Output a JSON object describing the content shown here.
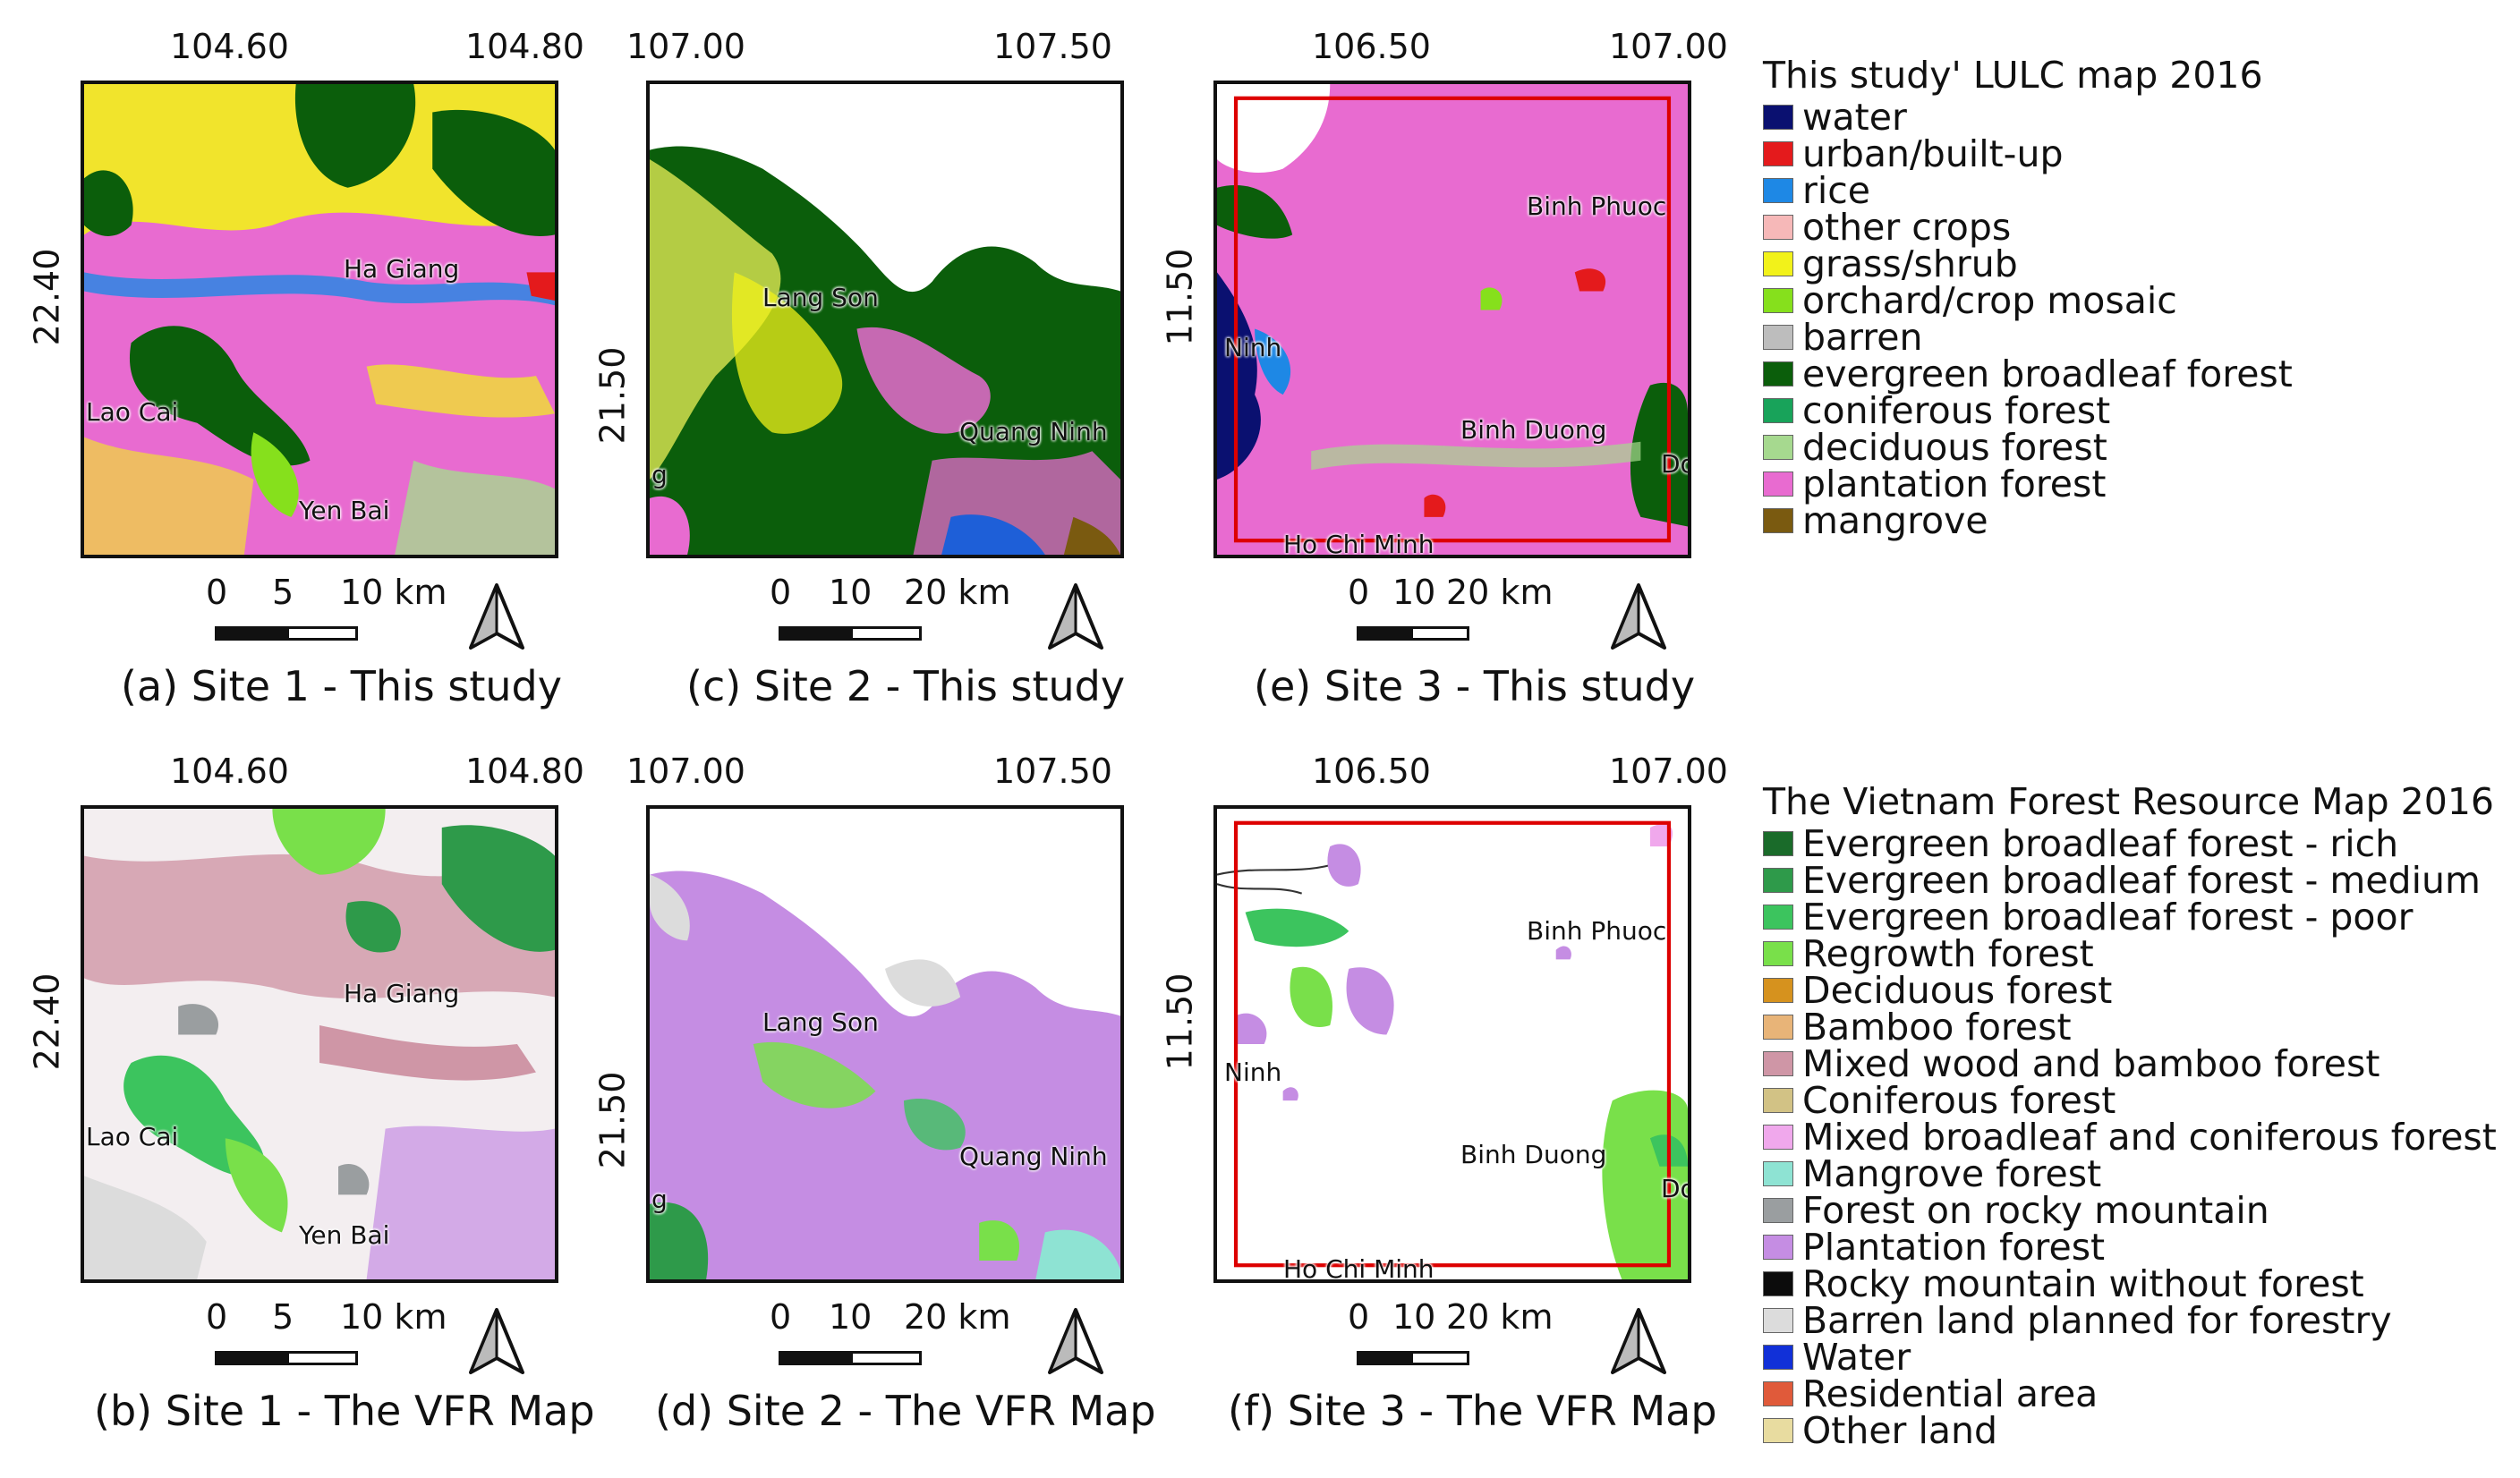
{
  "panels": [
    {
      "id": "a",
      "caption": "(a) Site 1 - This study",
      "top_ticks": [
        "104.60",
        "104.80"
      ],
      "left_tick": "22.40",
      "scale_labels": [
        "0",
        "5",
        "10 km"
      ],
      "places": [
        "Ha Giang",
        "Lao Cai",
        "Yen Bai"
      ]
    },
    {
      "id": "c",
      "caption": "(c) Site 2 - This study",
      "top_ticks": [
        "107.00",
        "107.50"
      ],
      "left_tick": "21.50",
      "scale_labels": [
        "0",
        "10",
        "20 km"
      ],
      "places": [
        "Lang Son",
        "Quang Ninh",
        "g"
      ]
    },
    {
      "id": "e",
      "caption": "(e) Site 3 - This study",
      "top_ticks": [
        "106.50",
        "107.00"
      ],
      "left_tick": "11.50",
      "scale_labels": [
        "0",
        "10",
        "20 km"
      ],
      "places": [
        "Binh Phuoc",
        "Ninh",
        "Binh Duong",
        "Ho Chi Minh",
        "Do"
      ]
    },
    {
      "id": "b",
      "caption": "(b) Site 1 - The VFR Map",
      "top_ticks": [
        "104.60",
        "104.80"
      ],
      "left_tick": "22.40",
      "scale_labels": [
        "0",
        "5",
        "10 km"
      ],
      "places": [
        "Ha Giang",
        "Lao Cai",
        "Yen Bai"
      ]
    },
    {
      "id": "d",
      "caption": "(d) Site 2 - The VFR Map",
      "top_ticks": [
        "107.00",
        "107.50"
      ],
      "left_tick": "21.50",
      "scale_labels": [
        "0",
        "10",
        "20 km"
      ],
      "places": [
        "Lang Son",
        "Quang Ninh",
        "g"
      ]
    },
    {
      "id": "f",
      "caption": "(f) Site 3 - The VFR Map",
      "top_ticks": [
        "106.50",
        "107.00"
      ],
      "left_tick": "11.50",
      "scale_labels": [
        "0",
        "10",
        "20 km"
      ],
      "places": [
        "Binh Phuoc",
        "Ninh",
        "Binh Duong",
        "Ho Chi Minh",
        "Do"
      ]
    }
  ],
  "legend_study": {
    "title": "This study' LULC map 2016",
    "items": [
      {
        "label": "water",
        "color": "#0a1070"
      },
      {
        "label": "urban/built-up",
        "color": "#e41a1c"
      },
      {
        "label": "rice",
        "color": "#1e88e5"
      },
      {
        "label": "other crops",
        "color": "#f6b8b8"
      },
      {
        "label": "grass/shrub",
        "color": "#f2f21a"
      },
      {
        "label": "orchard/crop mosaic",
        "color": "#86e01c"
      },
      {
        "label": "barren",
        "color": "#bdbdbd"
      },
      {
        "label": "evergreen broadleaf forest",
        "color": "#0b5e0b"
      },
      {
        "label": "coniferous forest",
        "color": "#18a35a"
      },
      {
        "label": "deciduous forest",
        "color": "#a6d98f"
      },
      {
        "label": "plantation forest",
        "color": "#e86bd0"
      },
      {
        "label": "mangrove",
        "color": "#7a5a10"
      }
    ]
  },
  "legend_vfr": {
    "title": "The Vietnam Forest Resource Map 2016",
    "items": [
      {
        "label": "Evergreen broadleaf forest - rich",
        "color": "#1a6b2a"
      },
      {
        "label": "Evergreen broadleaf forest - medium",
        "color": "#2e9a4a"
      },
      {
        "label": "Evergreen broadleaf forest - poor",
        "color": "#3cc45e"
      },
      {
        "label": "Regrowth forest",
        "color": "#79e04a"
      },
      {
        "label": "Deciduous forest",
        "color": "#d6921e"
      },
      {
        "label": "Bamboo forest",
        "color": "#e8b478"
      },
      {
        "label": "Mixed wood and bamboo forest",
        "color": "#cf96a6"
      },
      {
        "label": "Coniferous forest",
        "color": "#d2c285"
      },
      {
        "label": "Mixed broadleaf and coniferous forest",
        "color": "#f0a8ec"
      },
      {
        "label": "Mangrove forest",
        "color": "#8ee3d3"
      },
      {
        "label": "Forest on rocky mountain",
        "color": "#9a9ea0"
      },
      {
        "label": "Plantation forest",
        "color": "#c58de3"
      },
      {
        "label": "Rocky mountain without forest",
        "color": "#0c0c0c"
      },
      {
        "label": "Barren land planned for forestry",
        "color": "#dcdcdc"
      },
      {
        "label": "Water",
        "color": "#1130d8"
      },
      {
        "label": "Residential area",
        "color": "#e05a3a"
      },
      {
        "label": "Other land",
        "color": "#e8dca0"
      }
    ]
  }
}
